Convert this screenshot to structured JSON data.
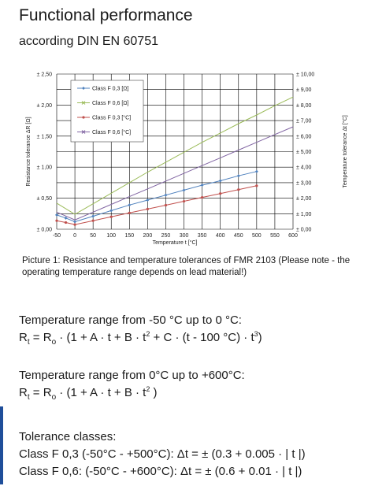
{
  "heading": "Functional performance",
  "subheading": "according DIN EN 60751",
  "caption": "Picture 1: Resistance and temperature tolerances of FMR 2103 (Please note - the operating temperature range depends on lead material!)",
  "range1": {
    "title": "Temperature range from -50 °C up to 0 °C:",
    "formula": {
      "a": "R",
      "a_sub": "t",
      "b": " = R",
      "b_sub": "o",
      "c": " · (1 + A · t  + B · t",
      "c_sup": "2",
      "d": " + C · (t - 100 °C) · t",
      "d_sup": "3",
      "e": ")"
    }
  },
  "range2": {
    "title": "Temperature range from 0°C up to +600°C:",
    "formula": {
      "a": "R",
      "a_sub": "t",
      "b": " = R",
      "b_sub": "o",
      "c": " · (1 + A · t  + B · t",
      "c_sup": "2",
      "e": " )"
    }
  },
  "tolerance": {
    "title": "Tolerance classes:",
    "class_f03": "Class F 0,3 (-50°C - +500°C): Δt = ± (0.3 + 0.005 · | t |)",
    "class_f06": "Class F 0,6: (-50°C - +600°C): Δt = ± (0.6 + 0.01 · | t |)"
  },
  "chart_data": {
    "type": "line",
    "xlabel": "Temperature t [°C]",
    "ylabel": "Resistance tolerance ΔR [Ω]",
    "y2label": "Temperature tolerance Δt [°C]",
    "xlim": [
      -50,
      600
    ],
    "ylim": [
      0,
      2.5
    ],
    "y2lim": [
      0,
      10
    ],
    "x_ticks": [
      "-50",
      "0",
      "50",
      "100",
      "150",
      "200",
      "250",
      "300",
      "350",
      "400",
      "450",
      "500",
      "550",
      "600"
    ],
    "y_ticks": [
      "± 0,00",
      "± 0,50",
      "± 1,00",
      "± 1,50",
      "± 2,00",
      "± 2,50"
    ],
    "y2_ticks": [
      "± 0,00",
      "± 1,00",
      "± 2,00",
      "± 3,00",
      "± 4,00",
      "± 5,00",
      "± 6,00",
      "± 7,00",
      "± 8,00",
      "± 9,00",
      "± 10,00"
    ],
    "grid": true,
    "legend_position": "top-left",
    "series": [
      {
        "name": "Class F 0,3 [Ω]",
        "axis": "left",
        "color": "#4f81bd",
        "marker": "diamond",
        "x": [
          -50,
          -25,
          0,
          50,
          100,
          150,
          200,
          250,
          300,
          350,
          400,
          450,
          500
        ],
        "y": [
          0.23,
          0.18,
          0.12,
          0.21,
          0.3,
          0.39,
          0.47,
          0.55,
          0.63,
          0.71,
          0.78,
          0.86,
          0.93
        ]
      },
      {
        "name": "Class F 0,6 [Ω]",
        "axis": "left",
        "color": "#9bbb59",
        "marker": "none",
        "x": [
          -50,
          0,
          50,
          100,
          150,
          200,
          250,
          300,
          350,
          400,
          450,
          500,
          550,
          600
        ],
        "y": [
          0.42,
          0.24,
          0.41,
          0.58,
          0.75,
          0.92,
          1.08,
          1.24,
          1.4,
          1.55,
          1.7,
          1.84,
          1.99,
          2.13
        ]
      },
      {
        "name": "Class F 0,3 [°C]",
        "axis": "right",
        "color": "#c0504d",
        "marker": "dot",
        "x": [
          -50,
          -25,
          0,
          50,
          100,
          150,
          200,
          250,
          300,
          350,
          400,
          450,
          500
        ],
        "y": [
          0.55,
          0.43,
          0.3,
          0.55,
          0.8,
          1.05,
          1.3,
          1.55,
          1.8,
          2.05,
          2.3,
          2.55,
          2.8
        ]
      },
      {
        "name": "Class F 0,6 [°C]",
        "axis": "right",
        "color": "#8064a2",
        "marker": "none",
        "x": [
          -50,
          0,
          50,
          100,
          150,
          200,
          250,
          300,
          350,
          400,
          450,
          500,
          550,
          600
        ],
        "y": [
          1.1,
          0.6,
          1.1,
          1.6,
          2.1,
          2.6,
          3.1,
          3.6,
          4.1,
          4.6,
          5.1,
          5.6,
          6.1,
          6.6
        ]
      }
    ]
  }
}
